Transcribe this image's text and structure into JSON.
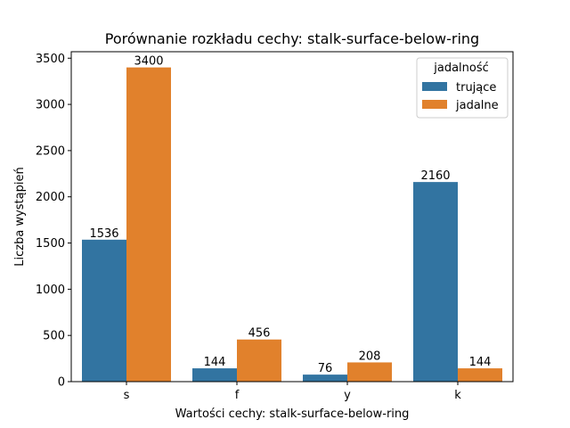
{
  "chart_data": {
    "type": "bar",
    "title": "Porównanie rozkładu cechy: stalk-surface-below-ring",
    "xlabel": "Wartości cechy: stalk-surface-below-ring",
    "ylabel": "Liczba wystąpień",
    "categories": [
      "s",
      "f",
      "y",
      "k"
    ],
    "series": [
      {
        "name": "trujące",
        "values": [
          1536,
          144,
          76,
          2160
        ],
        "color": "#3274a1"
      },
      {
        "name": "jadalne",
        "values": [
          3400,
          456,
          208,
          144
        ],
        "color": "#e1812c"
      }
    ],
    "ylim": [
      0,
      3570
    ],
    "yticks": [
      0,
      500,
      1000,
      1500,
      2000,
      2500,
      3000,
      3500
    ],
    "legend": {
      "title": "jadalność",
      "position": "top-right"
    },
    "grid": false
  }
}
